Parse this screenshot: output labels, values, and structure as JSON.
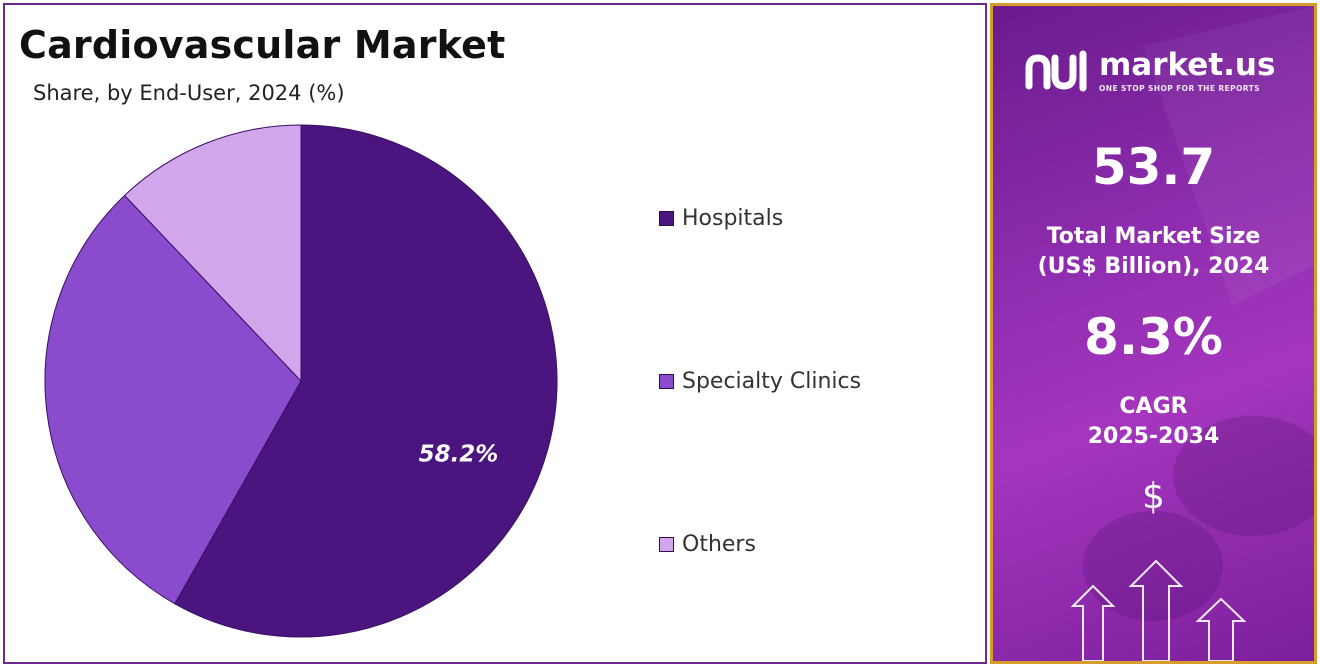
{
  "header": {
    "title": "Cardiovascular Market",
    "subtitle": "Share, by End-User, 2024 (%)"
  },
  "chart_data": {
    "type": "pie",
    "title": "Cardiovascular Market",
    "subtitle": "Share, by End-User, 2024 (%)",
    "categories": [
      "Hospitals",
      "Specialty Clinics",
      "Others"
    ],
    "values": [
      58.2,
      29.7,
      12.1
    ],
    "colors": [
      "#4b1580",
      "#8a4bcc",
      "#d2a6eb"
    ],
    "data_labels": [
      "58.2%",
      "",
      ""
    ],
    "legend_position": "right"
  },
  "sidebar": {
    "brand_name": "market.us",
    "brand_tagline": "ONE STOP SHOP FOR THE REPORTS",
    "market_size_value": "53.7",
    "market_size_label_line1": "Total Market Size",
    "market_size_label_line2": "(US$ Billion), 2024",
    "cagr_value": "8.3%",
    "cagr_label_line1": "CAGR",
    "cagr_label_line2": "2025-2034",
    "currency_symbol": "$",
    "accent_color": "#d89c2c"
  }
}
